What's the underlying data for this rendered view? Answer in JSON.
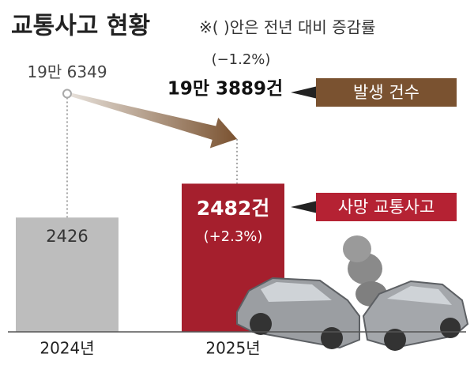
{
  "chart_data": {
    "type": "bar",
    "title": "교통사고 현황",
    "subtitle": "※(  )안은 전년 대비 증감률",
    "categories": [
      "2024년",
      "2025년"
    ],
    "ylim": [
      2237,
      2510
    ],
    "y2lim": [
      192000,
      198000
    ],
    "series": [
      {
        "name": "사망 교통사고",
        "colors": [
          "#bdbdbd",
          "#a51f2d"
        ],
        "color": "#b52233",
        "values": [
          2426,
          2482
        ],
        "value_labels": [
          "2426",
          "2482건"
        ],
        "change": [
          null,
          2.3
        ],
        "change_labels": [
          null,
          "(+2.3%)"
        ]
      },
      {
        "name": "발생 건수",
        "axis": "y2",
        "color": "#7a5230",
        "values": [
          196349,
          193889
        ],
        "value_labels": [
          "19만 6349",
          "19만 3889건"
        ],
        "change": [
          null,
          -1.2
        ],
        "change_labels": [
          null,
          "(−1.2%)"
        ]
      }
    ]
  }
}
